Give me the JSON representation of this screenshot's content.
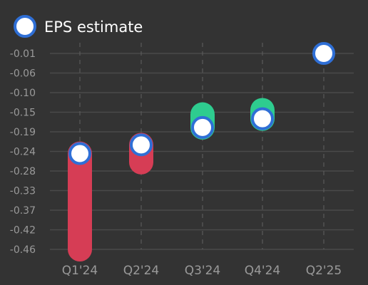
{
  "colors": {
    "background": "#333333",
    "miss": "#d63d55",
    "beat": "#2ecc8f",
    "marker_fill": "#ffffff",
    "marker_stroke": "#2f6fd6"
  },
  "legend": {
    "label": "EPS estimate",
    "position": "top-left"
  },
  "chart_data": {
    "type": "range-bar-with-markers",
    "categories": [
      "Q1'24",
      "Q2'24",
      "Q3'24",
      "Q4'24",
      "Q2'25"
    ],
    "y_ticks": [
      "-0.01",
      "-0.06",
      "-0.10",
      "-0.15",
      "-0.19",
      "-0.24",
      "-0.28",
      "-0.33",
      "-0.37",
      "-0.42",
      "-0.46"
    ],
    "ylim": [
      -0.46,
      -0.01
    ],
    "grid": true,
    "series": [
      {
        "name": "EPS estimate",
        "values": [
          -0.24,
          -0.22,
          -0.18,
          -0.16,
          -0.01
        ]
      }
    ],
    "actual": [
      -0.46,
      -0.26,
      -0.15,
      -0.14,
      null
    ]
  }
}
